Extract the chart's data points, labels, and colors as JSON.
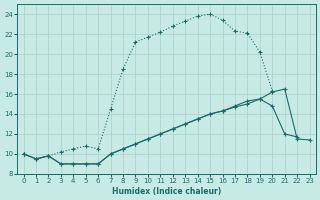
{
  "xlabel": "Humidex (Indice chaleur)",
  "bg_color": "#c8eae5",
  "grid_color": "#b0d4ce",
  "line_color": "#1a6b6b",
  "xlim": [
    -0.5,
    23.5
  ],
  "ylim": [
    8,
    25
  ],
  "xticks": [
    0,
    1,
    2,
    3,
    4,
    5,
    6,
    7,
    8,
    9,
    10,
    11,
    12,
    13,
    14,
    15,
    16,
    17,
    18,
    19,
    20,
    21,
    22,
    23
  ],
  "yticks": [
    8,
    10,
    12,
    14,
    16,
    18,
    20,
    22,
    24
  ],
  "s1x": [
    0,
    1,
    2,
    3,
    4,
    5,
    6,
    7,
    8,
    9,
    10,
    11,
    12,
    13,
    14,
    15,
    16,
    17,
    18,
    19,
    20
  ],
  "s1y": [
    10.0,
    9.5,
    9.8,
    10.2,
    10.5,
    10.8,
    10.5,
    14.5,
    18.5,
    21.2,
    21.7,
    22.2,
    22.8,
    23.3,
    23.8,
    24.0,
    23.4,
    22.3,
    22.1,
    20.2,
    16.3
  ],
  "s2x": [
    0,
    1,
    2,
    3,
    4,
    5,
    6,
    7,
    8,
    9,
    10,
    11,
    12,
    13,
    14,
    15,
    16,
    17,
    18,
    19,
    20,
    21,
    22
  ],
  "s2y": [
    10.0,
    9.5,
    9.8,
    9.0,
    9.0,
    9.0,
    9.0,
    10.0,
    10.5,
    11.0,
    11.5,
    12.0,
    12.5,
    13.0,
    13.5,
    14.0,
    14.3,
    14.8,
    15.3,
    15.5,
    14.8,
    12.0,
    11.7
  ],
  "s3x": [
    0,
    1,
    2,
    3,
    4,
    5,
    6,
    7,
    8,
    9,
    10,
    11,
    12,
    13,
    14,
    15,
    16,
    17,
    18,
    19,
    20,
    21,
    22,
    23
  ],
  "s3y": [
    10.0,
    9.5,
    9.8,
    9.0,
    9.0,
    9.0,
    9.0,
    10.0,
    10.5,
    11.0,
    11.5,
    12.0,
    12.5,
    13.0,
    13.5,
    14.0,
    14.3,
    14.7,
    15.0,
    15.5,
    16.2,
    16.5,
    11.5,
    11.4
  ]
}
